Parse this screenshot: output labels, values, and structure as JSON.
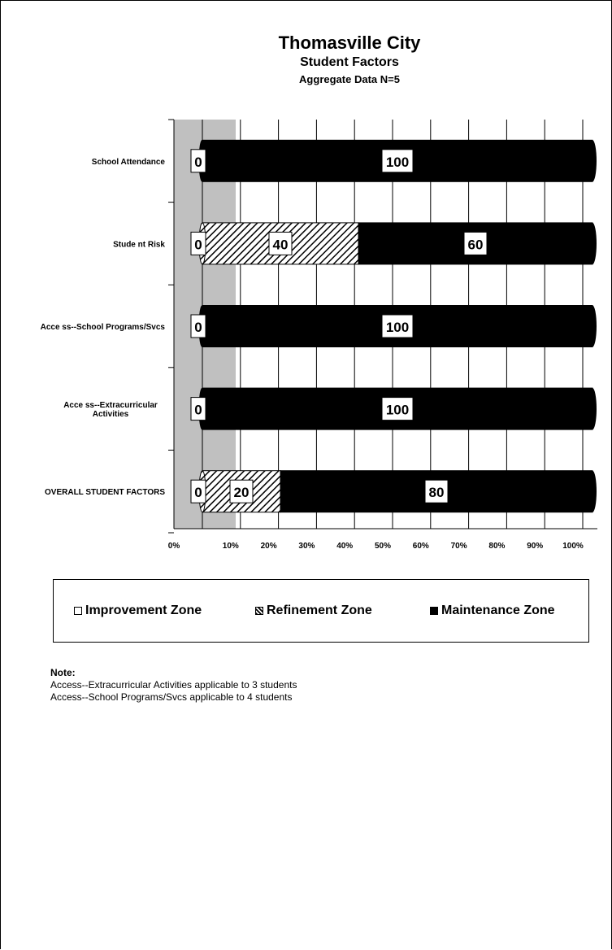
{
  "header": {
    "title": "Thomasville City",
    "subtitle": "Student Factors",
    "subtitle2": "Aggregate Data N=5"
  },
  "legend": {
    "improvement": "Improvement Zone",
    "refinement": "Refinement Zone",
    "maintenance": "Maintenance Zone"
  },
  "notes": {
    "title": "Note:",
    "line1": "Access--Extracurricular Activities applicable to 3 students",
    "line2": "Access--School Programs/Svcs  applicable to 4 students"
  },
  "colors": {
    "improvement": "#ffffff",
    "refinement": "hatched",
    "maintenance": "#000000",
    "improvement_zone_band": "#c0c0c0"
  },
  "chart_data": {
    "type": "bar",
    "orientation": "horizontal",
    "stacked": true,
    "categories": [
      "School Attendance",
      "Student Risk",
      "Access--School Programs/Svcs",
      "Access--Extracurricular Activities",
      "OVERALL STUDENT FACTORS"
    ],
    "category_lines": [
      [
        "School Attendance"
      ],
      [
        "Stude nt Risk"
      ],
      [
        "Acce ss--School Programs/Svcs"
      ],
      [
        "Acce ss--Extracurricular",
        "Activities"
      ],
      [
        "OVERALL STUDENT FACTORS"
      ]
    ],
    "series": [
      {
        "name": "Improvement Zone",
        "values": [
          0,
          0,
          0,
          0,
          0
        ]
      },
      {
        "name": "Refinement Zone",
        "values": [
          0,
          40,
          0,
          0,
          20
        ]
      },
      {
        "name": "Maintenance Zone",
        "values": [
          100,
          60,
          100,
          100,
          80
        ]
      }
    ],
    "data_labels": [
      [
        "0",
        "100"
      ],
      [
        "0",
        "40",
        "60"
      ],
      [
        "0",
        "100"
      ],
      [
        "0",
        "100"
      ],
      [
        "0",
        "20",
        "80"
      ]
    ],
    "x_ticks": [
      "0%",
      "10%",
      "20%",
      "30%",
      "40%",
      "50%",
      "60%",
      "70%",
      "80%",
      "90%",
      "100%"
    ],
    "xlim": [
      0,
      100
    ],
    "grid": true,
    "legend_position": "bottom"
  }
}
